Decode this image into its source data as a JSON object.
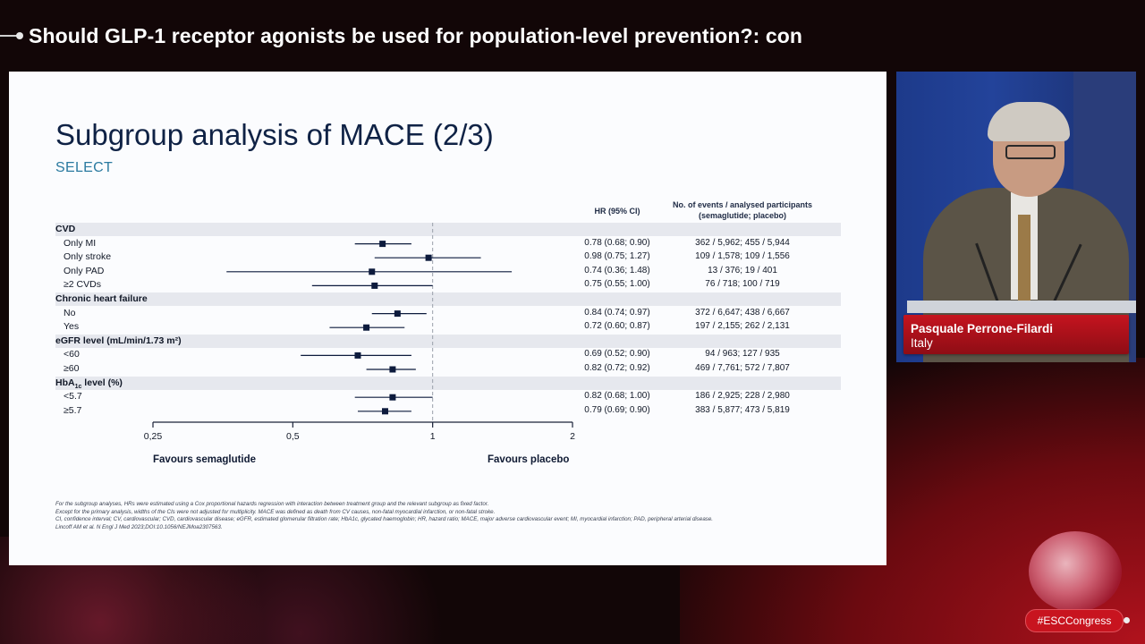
{
  "broadcast": {
    "title": "Should GLP-1 receptor agonists be used for population-level prevention?: con",
    "hashtag": "#ESCCongress"
  },
  "speaker": {
    "name": "Pasquale Perrone-Filardi",
    "country": "Italy"
  },
  "slide": {
    "title": "Subgroup analysis of MACE (2/3)",
    "subtitle": "SELECT",
    "col_hr": "HR (95% CI)",
    "col_events_line1": "No. of events / analysed participants",
    "col_events_line2": "(semaglutide; placebo)",
    "favours_left": "Favours semaglutide",
    "favours_right": "Favours placebo",
    "footnotes": [
      "For the subgroup analyses, HRs were estimated using a Cox proportional hazards regression with interaction between treatment group and the relevant subgroup as fixed factor.",
      "Except for the primary analysis, widths of the CIs were not adjusted for multiplicity. MACE was defined as death from CV causes, non-fatal myocardial infarction, or non-fatal stroke.",
      "CI, confidence interval; CV, cardiovascular; CVD, cardiovascular disease; eGFR, estimated glomerular filtration rate; HbA1c, glycated haemoglobin; HR, hazard ratio; MACE, major adverse cardiovascular event; MI, myocardial infarction; PAD, peripheral arterial disease.",
      "Lincoff AM et al. N Engl J Med 2023;DOI:10.1056/NEJMoa2307563."
    ]
  },
  "chart_data": {
    "type": "forest",
    "x_scale": "log",
    "x_ticks": [
      0.25,
      0.5,
      1,
      2
    ],
    "x_tick_labels": [
      "0,25",
      "0,5",
      "1",
      "2"
    ],
    "reference_line": 1,
    "rows": [
      {
        "kind": "group",
        "label": "CVD"
      },
      {
        "kind": "item",
        "label": "Only MI",
        "hr": 0.78,
        "lo": 0.68,
        "hi": 0.9,
        "hr_text": "0.78 (0.68; 0.90)",
        "events": "362 / 5,962; 455 / 5,944"
      },
      {
        "kind": "item",
        "label": "Only stroke",
        "hr": 0.98,
        "lo": 0.75,
        "hi": 1.27,
        "hr_text": "0.98 (0.75; 1.27)",
        "events": "109 / 1,578; 109 / 1,556"
      },
      {
        "kind": "item",
        "label": "Only PAD",
        "hr": 0.74,
        "lo": 0.36,
        "hi": 1.48,
        "hr_text": "0.74 (0.36; 1.48)",
        "events": "13 / 376; 19 / 401"
      },
      {
        "kind": "item",
        "label": "≥2 CVDs",
        "hr": 0.75,
        "lo": 0.55,
        "hi": 1.0,
        "hr_text": "0.75 (0.55; 1.00)",
        "events": "76 / 718; 100 / 719"
      },
      {
        "kind": "group",
        "label": "Chronic heart failure"
      },
      {
        "kind": "item",
        "label": "No",
        "hr": 0.84,
        "lo": 0.74,
        "hi": 0.97,
        "hr_text": "0.84 (0.74; 0.97)",
        "events": "372 / 6,647; 438 / 6,667"
      },
      {
        "kind": "item",
        "label": "Yes",
        "hr": 0.72,
        "lo": 0.6,
        "hi": 0.87,
        "hr_text": "0.72 (0.60; 0.87)",
        "events": "197 / 2,155; 262 / 2,131"
      },
      {
        "kind": "group",
        "label": "eGFR level (mL/min/1.73 m²)"
      },
      {
        "kind": "item",
        "label": "<60",
        "hr": 0.69,
        "lo": 0.52,
        "hi": 0.9,
        "hr_text": "0.69 (0.52; 0.90)",
        "events": "94 / 963; 127 / 935"
      },
      {
        "kind": "item",
        "label": "≥60",
        "hr": 0.82,
        "lo": 0.72,
        "hi": 0.92,
        "hr_text": "0.82 (0.72; 0.92)",
        "events": "469 / 7,761; 572 / 7,807"
      },
      {
        "kind": "group",
        "label": "HbA1c level (%)"
      },
      {
        "kind": "item",
        "label": "<5.7",
        "hr": 0.82,
        "lo": 0.68,
        "hi": 1.0,
        "hr_text": "0.82 (0.68; 1.00)",
        "events": "186 / 2,925; 228 / 2,980"
      },
      {
        "kind": "item",
        "label": "≥5.7",
        "hr": 0.79,
        "lo": 0.69,
        "hi": 0.9,
        "hr_text": "0.79 (0.69; 0.90)",
        "events": "383 / 5,877; 473 / 5,819"
      }
    ]
  }
}
